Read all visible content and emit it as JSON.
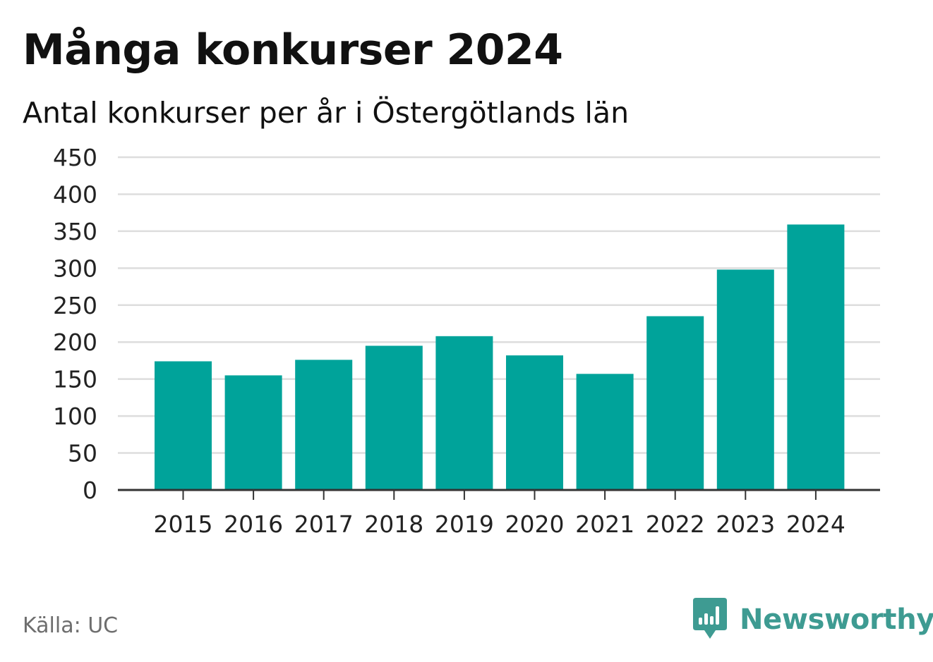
{
  "title": "Många konkurser 2024",
  "subtitle": "Antal konkurser per år i Östergötlands län",
  "source": "Källa: UC",
  "brand": {
    "name": "Newsworthy",
    "icon": "newsworthy-logo-icon",
    "color": "#3e9b92"
  },
  "colors": {
    "bar": "#00a39a",
    "grid": "#dddddd",
    "axis": "#333333"
  },
  "chart_data": {
    "type": "bar",
    "categories": [
      "2015",
      "2016",
      "2017",
      "2018",
      "2019",
      "2020",
      "2021",
      "2022",
      "2023",
      "2024"
    ],
    "values": [
      174,
      155,
      176,
      195,
      208,
      182,
      157,
      235,
      298,
      359
    ],
    "title": "Många konkurser 2024",
    "subtitle": "Antal konkurser per år i Östergötlands län",
    "xlabel": "",
    "ylabel": "",
    "ylim": [
      0,
      450
    ],
    "yticks": [
      0,
      50,
      100,
      150,
      200,
      250,
      300,
      350,
      400,
      450
    ],
    "grid": true,
    "legend": "none"
  }
}
